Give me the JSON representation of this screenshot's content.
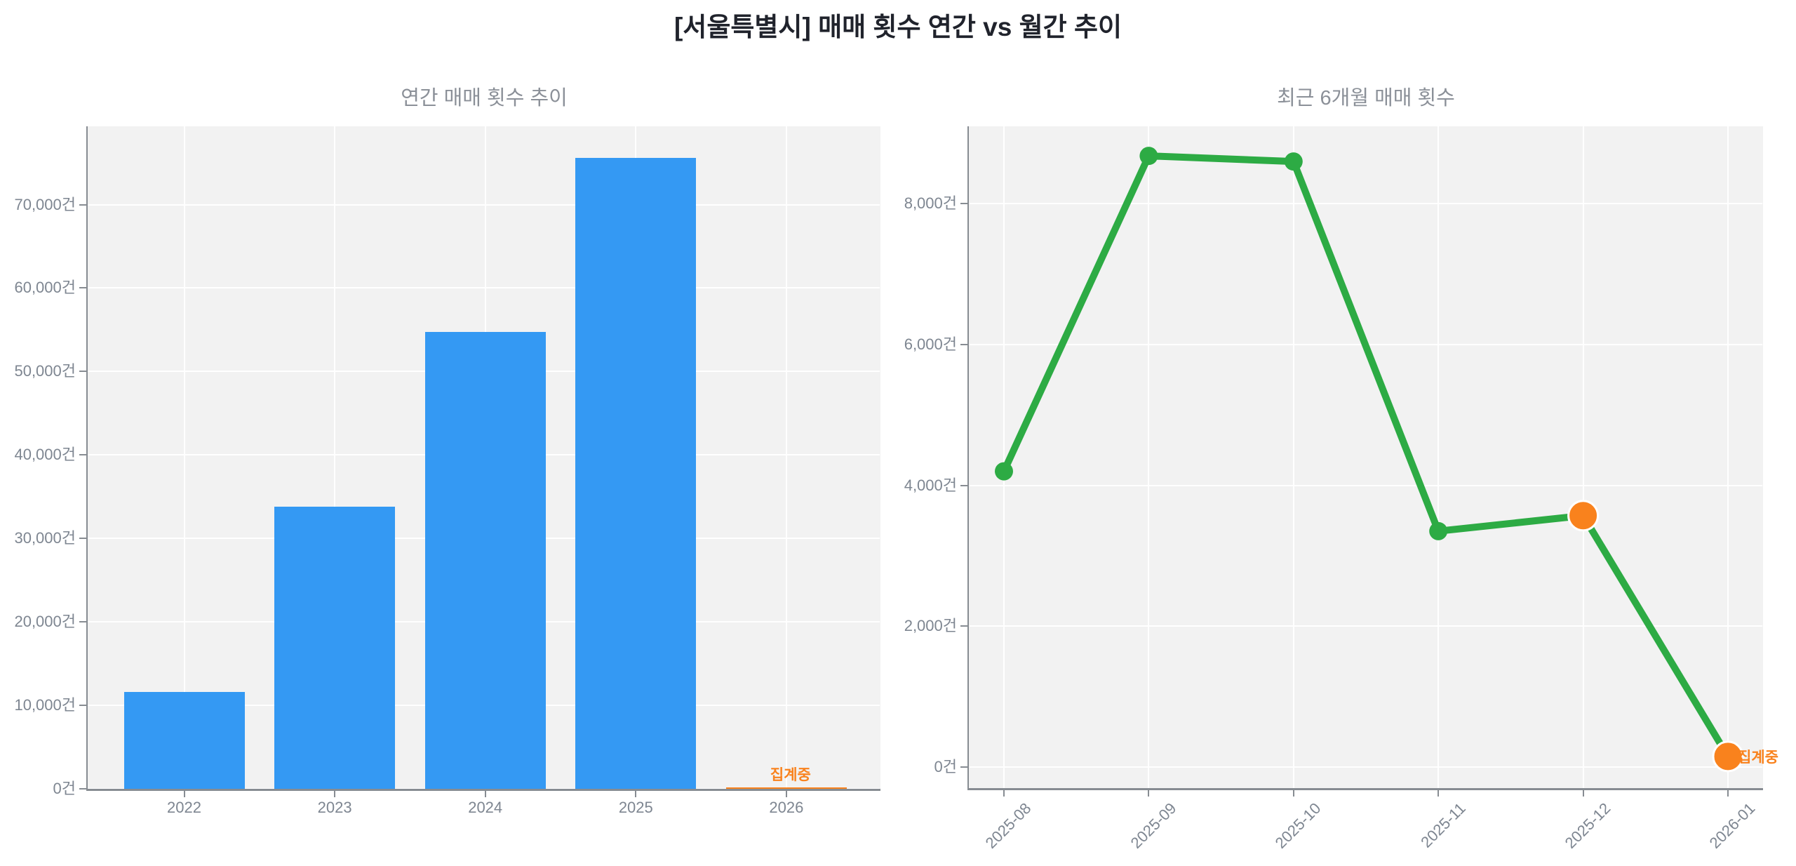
{
  "header": {
    "title": "[서울특별시] 매매 횟수 연간 vs 월간 추이"
  },
  "colors": {
    "bar_blue": "#3499f3",
    "pending_orange": "#f9821d",
    "line_green": "#2dab44",
    "plot_bg": "#f2f2f2",
    "grid": "rgba(255,255,255,0.95)",
    "axis_line": "#878c92",
    "tick_label": "#7e8691",
    "subtitle": "#8b9098",
    "title": "#20232c",
    "annotation": "#f9821d"
  },
  "unit_suffix": "건",
  "chart_data": [
    {
      "id": "annual",
      "type": "bar",
      "title": "연간 매매 횟수 추이",
      "categories": [
        "2022",
        "2023",
        "2024",
        "2025",
        "2026"
      ],
      "values": [
        11600,
        33800,
        54700,
        75600,
        200
      ],
      "bar_colors": [
        "#3499f3",
        "#3499f3",
        "#3499f3",
        "#3499f3",
        "#f9821d"
      ],
      "yticks": [
        0,
        10000,
        20000,
        30000,
        40000,
        50000,
        60000,
        70000
      ],
      "ylim": [
        0,
        79380
      ],
      "grid": true,
      "legend": "none",
      "annotation": {
        "text": "집계중",
        "category_index": 4
      }
    },
    {
      "id": "monthly",
      "type": "line",
      "title": "최근 6개월 매매 횟수",
      "x": [
        "2025-08",
        "2025-09",
        "2025-10",
        "2025-11",
        "2025-12",
        "2026-01"
      ],
      "values": [
        4200,
        8680,
        8600,
        3350,
        3570,
        150
      ],
      "line_color": "#2dab44",
      "point_colors": [
        "#2dab44",
        "#2dab44",
        "#2dab44",
        "#2dab44",
        "#f9821d",
        "#f9821d"
      ],
      "point_sizes": [
        13,
        13,
        13,
        13,
        21,
        21
      ],
      "yticks": [
        0,
        2000,
        4000,
        6000,
        8000
      ],
      "ylim": [
        -300,
        9100
      ],
      "grid": true,
      "annotation": {
        "text": "집계중",
        "x_index": 5
      }
    }
  ]
}
